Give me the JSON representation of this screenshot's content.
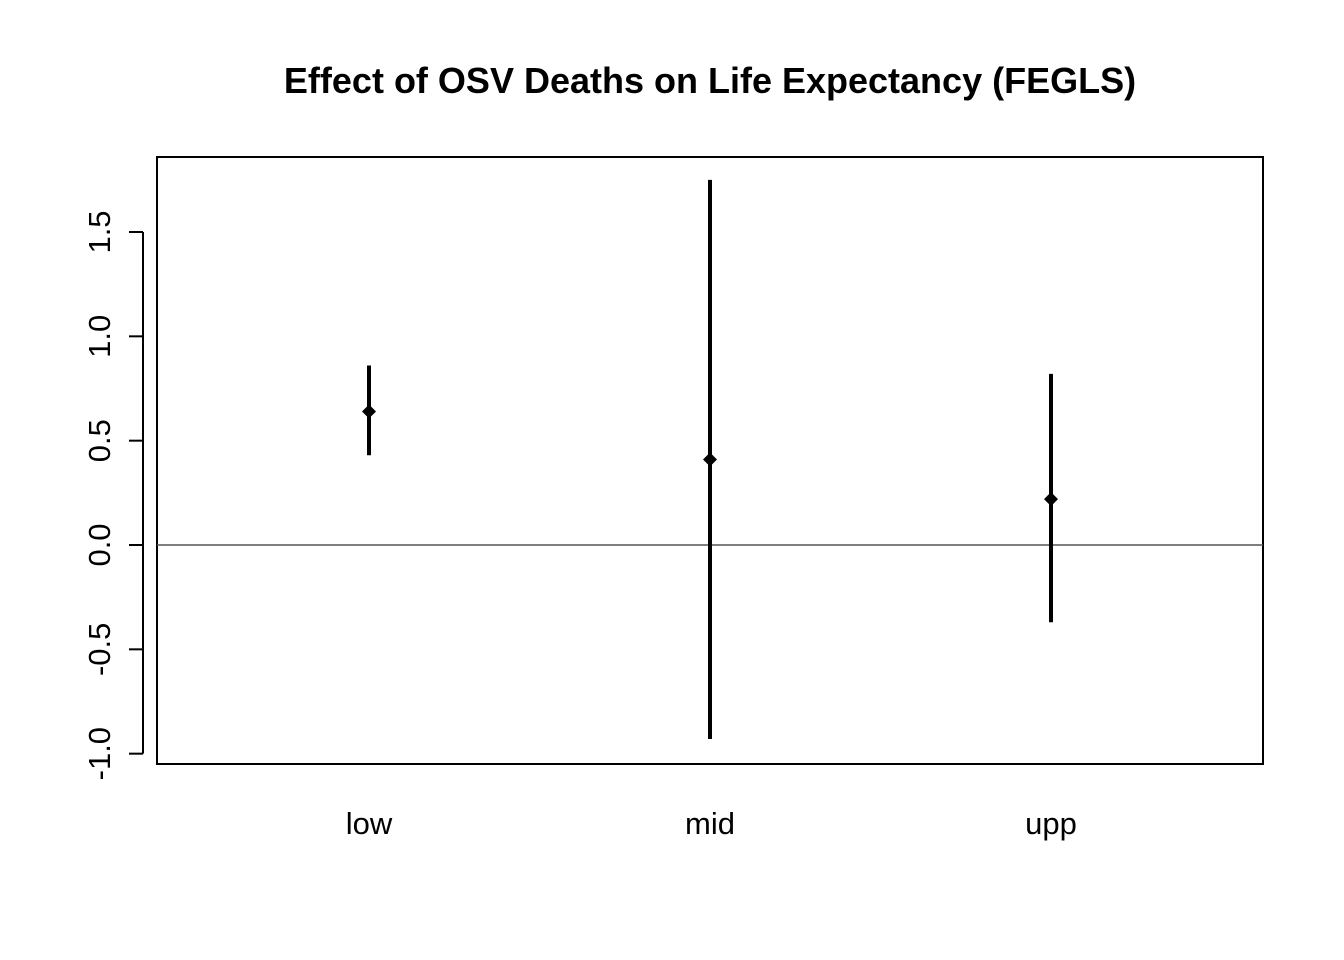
{
  "chart_data": {
    "type": "errorbar",
    "title": "Effect of OSV Deaths on Life Expectancy (FEGLS)",
    "xlabel": "",
    "ylabel": "",
    "categories": [
      "low",
      "mid",
      "upp"
    ],
    "estimates": [
      0.64,
      0.41,
      0.22
    ],
    "lower": [
      0.43,
      -0.93,
      -0.37
    ],
    "upper": [
      0.86,
      1.75,
      0.82
    ],
    "ylim": [
      -1.05,
      1.85
    ],
    "yticks": [
      -1.0,
      -0.5,
      0.0,
      0.5,
      1.0,
      1.5
    ],
    "ytick_labels": [
      "-1.0",
      "-0.5",
      "0.0",
      "0.5",
      "1.0",
      "1.5"
    ],
    "reference_line": 0,
    "grid": false,
    "legend": "none",
    "colors": {
      "marks": "#000000",
      "reference_line": "#555555",
      "background": "#ffffff"
    }
  }
}
